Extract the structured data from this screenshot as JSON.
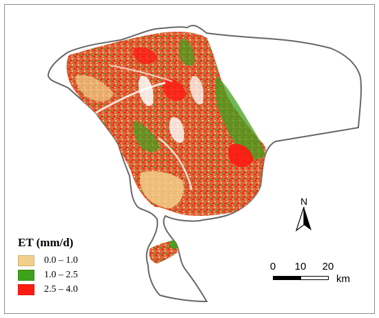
{
  "legend": {
    "title": "ET (mm/d)",
    "classes": [
      {
        "label": "0.0 – 1.0",
        "color": "#f2cf8a"
      },
      {
        "label": "1.0 – 2.5",
        "color": "#3fa21c"
      },
      {
        "label": "2.5 – 4.0",
        "color": "#ff1a12"
      }
    ]
  },
  "north_arrow": {
    "label": "N"
  },
  "scale_bar": {
    "ticks": [
      "0",
      "10",
      "20"
    ],
    "unit": "km"
  },
  "colors": {
    "boundary": "#666666",
    "low": "#f2cf8a",
    "mid": "#3fa21c",
    "high": "#ff1a12",
    "mixed": "#d9663a"
  }
}
